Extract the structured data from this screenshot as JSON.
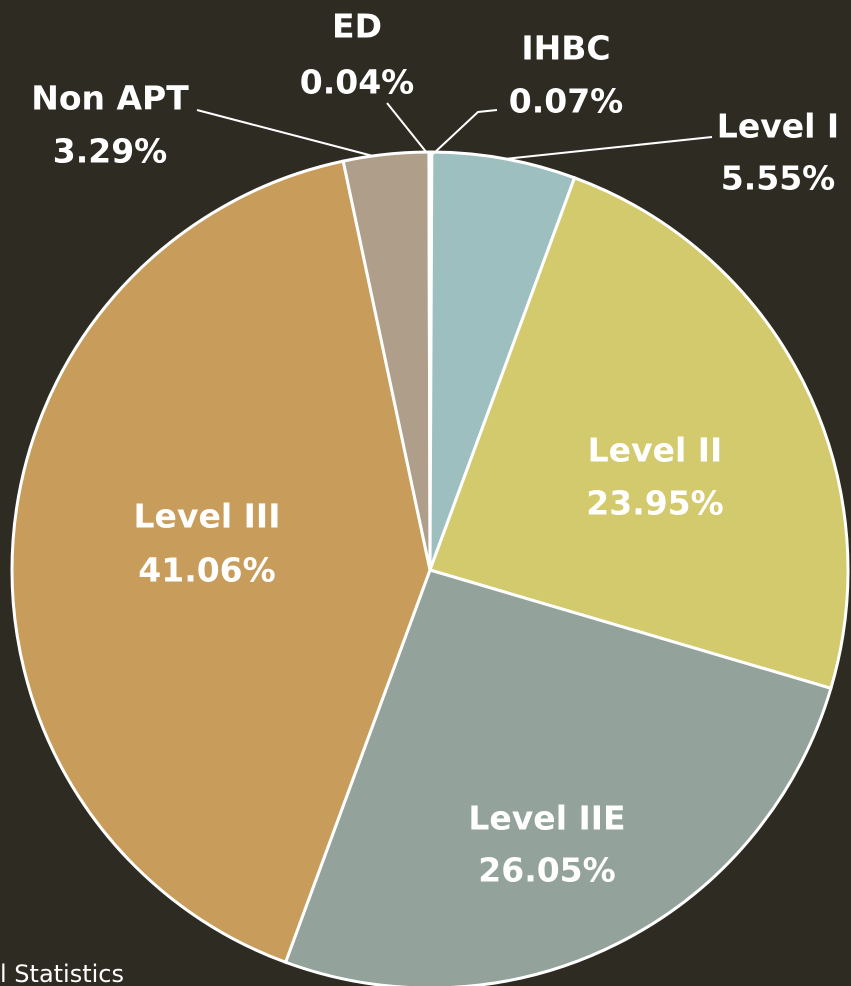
{
  "chart_data": {
    "type": "pie",
    "categories": [
      "IHBC",
      "Level I",
      "Level II",
      "Level IIE",
      "Level III",
      "Non APT",
      "ED"
    ],
    "values": [
      0.07,
      5.55,
      23.95,
      26.05,
      41.06,
      3.29,
      0.04
    ],
    "value_labels": [
      "0.07%",
      "5.55%",
      "23.95%",
      "26.05%",
      "41.06%",
      "3.29%",
      "0.04%"
    ],
    "colors": [
      "#d9d9d0",
      "#9dbfbf",
      "#d3c96d",
      "#93a39b",
      "#c89c5b",
      "#ae9e8a",
      "#c8c8c0"
    ],
    "footer": "l Statistics"
  }
}
